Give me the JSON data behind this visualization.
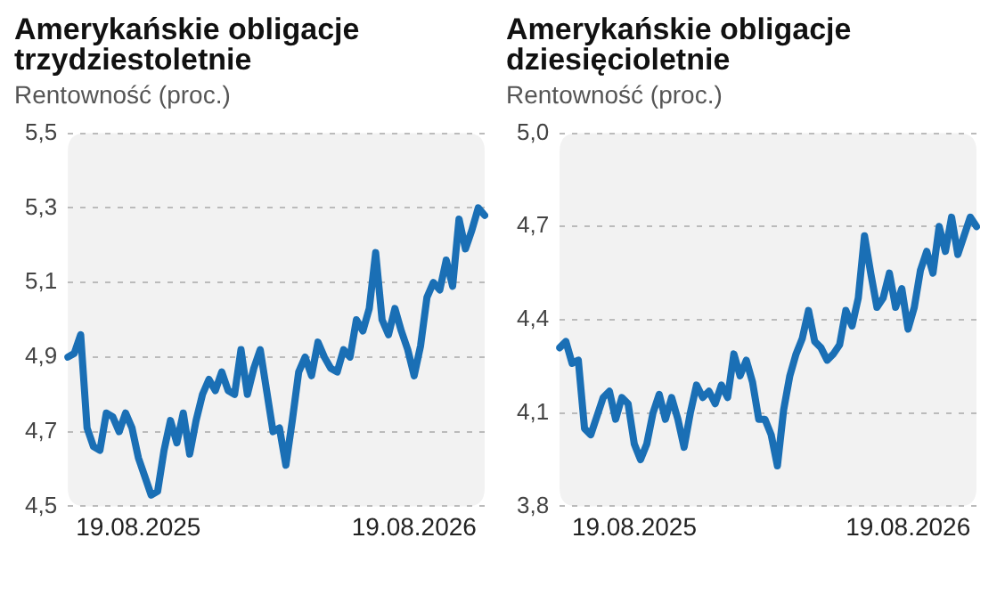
{
  "chart_data": [
    {
      "type": "line",
      "title": "Amerykańskie obligacje trzydziestoletnie",
      "subtitle": "Rentowność (proc.)",
      "categories": [
        null,
        null,
        null,
        null,
        null,
        null,
        null,
        null,
        null,
        null,
        null,
        "19.08.2025",
        null,
        null,
        null,
        null,
        null,
        null,
        null,
        null,
        null,
        null,
        null,
        null,
        null,
        null,
        null,
        null,
        null,
        null,
        null,
        null,
        null,
        null,
        null,
        null,
        null,
        null,
        null,
        null,
        null,
        null,
        null,
        null,
        null,
        null,
        null,
        null,
        null,
        null,
        null,
        null,
        null,
        null,
        "19.08.2026",
        null,
        null,
        null,
        null,
        null,
        null,
        null,
        null,
        null,
        null,
        null
      ],
      "series": [
        {
          "color": "#1a6fb5",
          "values": [
            4.9,
            4.91,
            4.96,
            4.71,
            4.66,
            4.65,
            4.75,
            4.74,
            4.7,
            4.75,
            4.71,
            4.63,
            4.58,
            4.53,
            4.54,
            4.65,
            4.73,
            4.67,
            4.75,
            4.64,
            4.73,
            4.8,
            4.84,
            4.81,
            4.86,
            4.81,
            4.8,
            4.92,
            4.8,
            4.87,
            4.92,
            4.81,
            4.7,
            4.71,
            4.61,
            4.73,
            4.86,
            4.9,
            4.85,
            4.94,
            4.9,
            4.87,
            4.86,
            4.92,
            4.9,
            5.0,
            4.97,
            5.03,
            5.18,
            5.0,
            4.96,
            5.03,
            4.97,
            4.92,
            4.85,
            4.93,
            5.06,
            5.1,
            5.08,
            5.16,
            5.09,
            5.27,
            5.19,
            5.24,
            5.3,
            5.28
          ]
        }
      ],
      "ylim": [
        4.5,
        5.5
      ],
      "yticks": [
        {
          "value": 4.5,
          "label": "4,5"
        },
        {
          "value": 4.7,
          "label": "4,7"
        },
        {
          "value": 4.9,
          "label": "4,9"
        },
        {
          "value": 5.1,
          "label": "5,1"
        },
        {
          "value": 5.3,
          "label": "5,3"
        },
        {
          "value": 5.5,
          "label": "5,5"
        }
      ],
      "grid": "y"
    },
    {
      "type": "line",
      "title": "Amerykańskie obligacje dziesięcioletnie",
      "subtitle": "Rentowność (proc.)",
      "categories": [
        null,
        null,
        null,
        null,
        null,
        null,
        null,
        null,
        null,
        null,
        null,
        null,
        "19.08.2025",
        null,
        null,
        null,
        null,
        null,
        null,
        null,
        null,
        null,
        null,
        null,
        null,
        null,
        null,
        null,
        null,
        null,
        null,
        null,
        null,
        null,
        null,
        null,
        null,
        null,
        null,
        null,
        null,
        null,
        null,
        null,
        null,
        null,
        null,
        null,
        null,
        null,
        null,
        null,
        null,
        null,
        null,
        null,
        "19.08.2026",
        null,
        null,
        null,
        null,
        null,
        null,
        null,
        null,
        null,
        null,
        null
      ],
      "series": [
        {
          "color": "#1a6fb5",
          "values": [
            4.31,
            4.33,
            4.26,
            4.27,
            4.05,
            4.03,
            4.09,
            4.15,
            4.17,
            4.08,
            4.15,
            4.13,
            4.0,
            3.95,
            4.0,
            4.1,
            4.16,
            4.08,
            4.15,
            4.08,
            3.99,
            4.1,
            4.19,
            4.15,
            4.17,
            4.13,
            4.19,
            4.15,
            4.29,
            4.22,
            4.27,
            4.2,
            4.08,
            4.08,
            4.03,
            3.93,
            4.11,
            4.22,
            4.29,
            4.34,
            4.43,
            4.33,
            4.31,
            4.27,
            4.29,
            4.32,
            4.43,
            4.38,
            4.47,
            4.67,
            4.55,
            4.44,
            4.47,
            4.55,
            4.44,
            4.5,
            4.37,
            4.44,
            4.56,
            4.62,
            4.55,
            4.7,
            4.62,
            4.73,
            4.61,
            4.67,
            4.73,
            4.7
          ]
        }
      ],
      "ylim": [
        3.8,
        5.0
      ],
      "yticks": [
        {
          "value": 3.8,
          "label": "3,8"
        },
        {
          "value": 4.1,
          "label": "4,1"
        },
        {
          "value": 4.4,
          "label": "4,4"
        },
        {
          "value": 4.7,
          "label": "4,7"
        },
        {
          "value": 5.0,
          "label": "5,0"
        }
      ],
      "grid": "y"
    }
  ]
}
